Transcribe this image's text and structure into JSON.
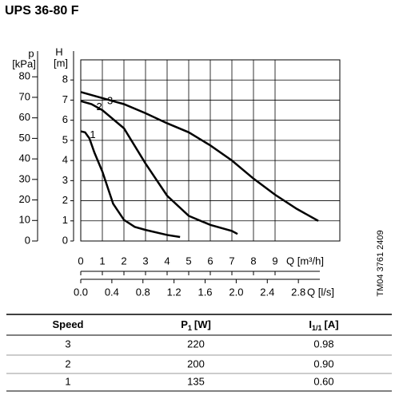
{
  "chart_data": {
    "type": "line",
    "title": "UPS 36-80 F",
    "y_label_symbol": "H",
    "y_label_unit": "[m]",
    "y2_label_symbol": "p",
    "y2_label_unit": "[kPa]",
    "x_label": "Q [m³/h]",
    "x2_label": "Q [l/s]",
    "xlim": [
      0,
      12
    ],
    "xticks": [
      0,
      1,
      2,
      3,
      4,
      5,
      6,
      7,
      8,
      9
    ],
    "x2lim": [
      0,
      3.3333
    ],
    "x2ticks": [
      {
        "value": 0,
        "label": "0.0"
      },
      0.4,
      0.8,
      1.2,
      1.6,
      {
        "value": 2,
        "label": "2.0"
      },
      2.4,
      2.8
    ],
    "ylim": [
      0,
      9
    ],
    "yticks": [
      0,
      1,
      2,
      3,
      4,
      5,
      6,
      7,
      8
    ],
    "y2lim": [
      0,
      88.26
    ],
    "y2ticks": [
      0,
      10,
      20,
      30,
      40,
      50,
      60,
      70,
      80
    ],
    "grid": true,
    "color": "#000000",
    "series": [
      {
        "name": "3",
        "x": [
          0,
          1,
          2,
          3,
          4,
          5,
          6,
          7,
          8,
          9,
          10,
          11
        ],
        "values": [
          7.4,
          7.1,
          6.8,
          6.35,
          5.85,
          5.4,
          4.75,
          4.0,
          3.1,
          2.3,
          1.6,
          1.0
        ]
      },
      {
        "name": "2",
        "x": [
          0,
          0.5,
          1,
          2,
          3,
          4,
          5,
          6,
          7,
          7.26
        ],
        "values": [
          6.95,
          6.8,
          6.5,
          5.6,
          3.85,
          2.25,
          1.25,
          0.8,
          0.5,
          0.35
        ]
      },
      {
        "name": "1",
        "x": [
          0,
          0.2,
          0.4,
          0.63,
          1,
          1.5,
          2,
          2.5,
          3,
          4,
          4.6
        ],
        "values": [
          5.45,
          5.4,
          5.1,
          4.4,
          3.45,
          1.85,
          1.05,
          0.7,
          0.55,
          0.3,
          0.2
        ]
      }
    ],
    "side_note": "TM04 3761 2409"
  },
  "table": {
    "columns": [
      {
        "text": "Speed"
      },
      {
        "text": "P",
        "sub": "1",
        "unit": "[W]"
      },
      {
        "text": "I",
        "sub": "1/1",
        "unit": "[A]"
      }
    ],
    "rows": [
      [
        "3",
        "220",
        "0.98"
      ],
      [
        "2",
        "200",
        "0.90"
      ],
      [
        "1",
        "135",
        "0.60"
      ]
    ]
  }
}
